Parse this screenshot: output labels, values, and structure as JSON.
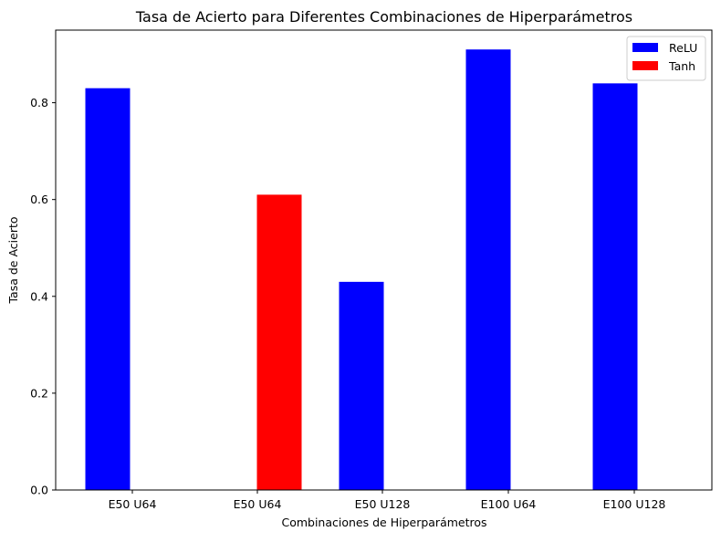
{
  "chart_data": {
    "type": "bar",
    "title": "Tasa de Acierto para Diferentes Combinaciones de Hiperparámetros",
    "xlabel": "Combinaciones de Hiperparámetros",
    "ylabel": "Tasa de Acierto",
    "ylim": [
      0,
      0.95
    ],
    "yticks": [
      "0.0",
      "0.2",
      "0.4",
      "0.6",
      "0.8"
    ],
    "ytick_values": [
      0.0,
      0.2,
      0.4,
      0.6,
      0.8
    ],
    "categories": [
      "E50 U64",
      "E50 U64",
      "E50 U128",
      "E100 U64",
      "E100 U128"
    ],
    "series": [
      {
        "name": "ReLU",
        "color": "#0000ff",
        "values": [
          0.83,
          null,
          0.43,
          0.91,
          0.84
        ]
      },
      {
        "name": "Tanh",
        "color": "#ff0000",
        "values": [
          null,
          0.61,
          null,
          null,
          null
        ]
      }
    ],
    "grid": false,
    "legend": "top-right"
  }
}
